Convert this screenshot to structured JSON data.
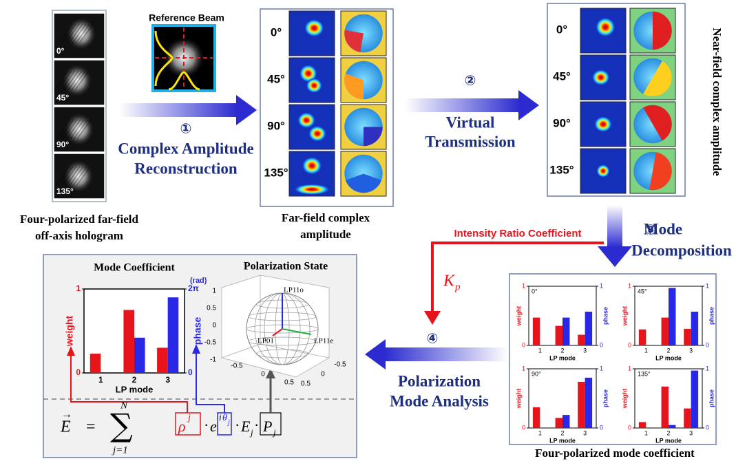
{
  "hologram": {
    "angles": [
      "0°",
      "45°",
      "90°",
      "135°"
    ],
    "caption": [
      "Four-polarized far-field",
      "off-axis hologram"
    ]
  },
  "reference_beam": {
    "label": "Reference Beam"
  },
  "steps": [
    {
      "number": "①",
      "lines": [
        "Complex Amplitude",
        "Reconstruction"
      ]
    },
    {
      "number": "②",
      "lines": [
        "Virtual",
        "Transmission"
      ]
    },
    {
      "number": "③",
      "lines": [
        "Mode",
        "Decomposition"
      ]
    },
    {
      "number": "④",
      "lines": [
        "Polarization",
        "Mode Analysis"
      ]
    }
  ],
  "far_field": {
    "angles": [
      "0°",
      "45°",
      "90°",
      "135°"
    ],
    "caption": [
      "Far-field complex",
      "amplitude"
    ]
  },
  "near_field": {
    "angles": [
      "0°",
      "45°",
      "90°",
      "135°"
    ],
    "caption": "Near-field complex amplitude"
  },
  "intensity_ratio": {
    "label": "Intensity Ratio Coefficient",
    "symbol": "K",
    "subscript": "p"
  },
  "mode_coefficients": {
    "caption": "Four-polarized mode coefficient",
    "charts": [
      {
        "label": "0°",
        "x_label": "LP mode",
        "categories": [
          "1",
          "2",
          "3"
        ],
        "ylim": [
          0,
          1
        ],
        "yticks": [
          0,
          1
        ],
        "y2lim": [
          0,
          1
        ],
        "y2ticks": [
          0,
          1
        ],
        "series": [
          {
            "name": "weight",
            "color": "#e8141c",
            "values": [
              0.47,
              0.33,
              0.18
            ]
          },
          {
            "name": "phase",
            "color": "#2828e6",
            "axis": "y2",
            "values": [
              null,
              0.47,
              0.57
            ]
          }
        ]
      },
      {
        "label": "45°",
        "x_label": "LP mode",
        "categories": [
          "1",
          "2",
          "3"
        ],
        "ylim": [
          0,
          1
        ],
        "yticks": [
          0,
          1
        ],
        "y2lim": [
          0,
          1
        ],
        "y2ticks": [
          0,
          1
        ],
        "series": [
          {
            "name": "weight",
            "color": "#e8141c",
            "values": [
              0.27,
              0.47,
              0.28
            ]
          },
          {
            "name": "phase",
            "color": "#2828e6",
            "axis": "y2",
            "values": [
              null,
              0.97,
              0.57
            ]
          }
        ]
      },
      {
        "label": "90°",
        "x_label": "LP mode",
        "categories": [
          "1",
          "2",
          "3"
        ],
        "ylim": [
          0,
          1
        ],
        "yticks": [
          0,
          1
        ],
        "y2lim": [
          0,
          1
        ],
        "y2ticks": [
          0,
          1
        ],
        "series": [
          {
            "name": "weight",
            "color": "#e8141c",
            "values": [
              0.35,
              0.17,
              0.78
            ]
          },
          {
            "name": "phase",
            "color": "#2828e6",
            "axis": "y2",
            "values": [
              null,
              0.22,
              0.85
            ]
          }
        ]
      },
      {
        "label": "135°",
        "x_label": "LP mode",
        "categories": [
          "1",
          "2",
          "3"
        ],
        "ylim": [
          0,
          1
        ],
        "yticks": [
          0,
          1
        ],
        "y2lim": [
          0,
          1
        ],
        "y2ticks": [
          0,
          1
        ],
        "series": [
          {
            "name": "weight",
            "color": "#e8141c",
            "values": [
              0.1,
              0.7,
              0.33
            ]
          },
          {
            "name": "phase",
            "color": "#2828e6",
            "axis": "y2",
            "values": [
              null,
              0.05,
              0.97
            ]
          }
        ]
      }
    ]
  },
  "analysis": {
    "mode_chart": {
      "title": "Mode Coefficient",
      "x_label": "LP mode",
      "categories": [
        "1",
        "2",
        "3"
      ],
      "ylim": [
        0,
        1
      ],
      "yticks": [
        0,
        1
      ],
      "y2lim": [
        0,
        1
      ],
      "y2ticks": [
        0,
        {
          "value": 1,
          "label": "2π"
        }
      ],
      "y2_unit": "(rad)",
      "series": [
        {
          "name": "weight",
          "color": "#e8141c",
          "values": [
            0.23,
            0.75,
            0.3
          ]
        },
        {
          "name": "phase",
          "color": "#2828e6",
          "axis": "y2",
          "values": [
            null,
            0.42,
            0.9
          ]
        }
      ]
    },
    "polarization_state": {
      "title": "Polarization State",
      "axes": [
        "LP11o",
        "LP01",
        "LP11e"
      ],
      "zticks": [
        1,
        0.5,
        0,
        -0.5,
        -1
      ],
      "xticks": [
        -0.5,
        0,
        0.5
      ],
      "yticks": [
        0.5,
        0,
        -0.5
      ]
    },
    "formula": {
      "lhs": "E",
      "vec": "→",
      "equals": "=",
      "sum": "∑",
      "upper": "N",
      "lower": "j=1",
      "rho": "ρ",
      "rho_sup": "j",
      "dot": "·",
      "exp": "e",
      "exp_sup": "i",
      "theta": "θ",
      "theta_sub": "j",
      "field": "E",
      "field_sub": "j",
      "pol": "P",
      "pol_sub": "j"
    }
  }
}
